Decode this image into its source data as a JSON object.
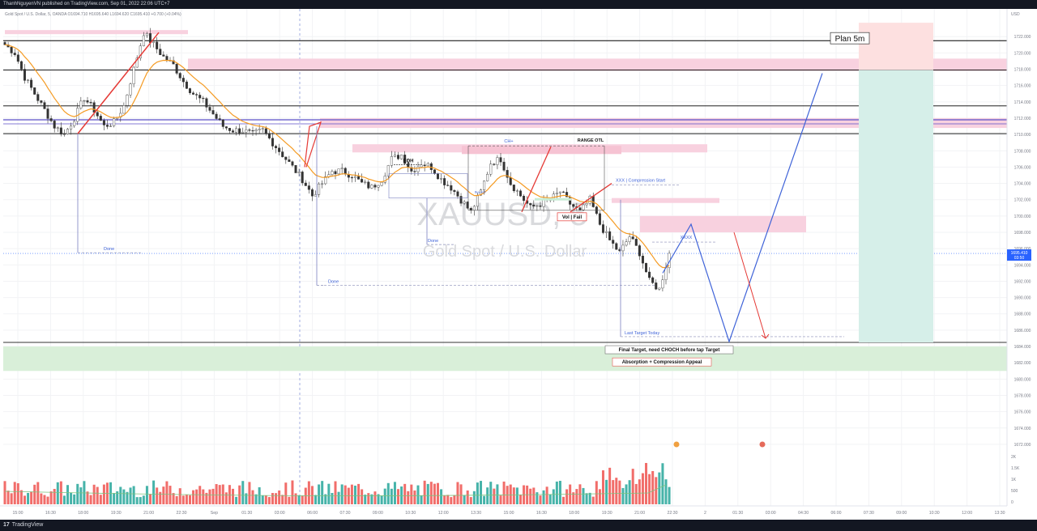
{
  "header": {
    "published_text": "ThanhNguyenVN published on TradingView.com, Sep 01, 2022 22:06 UTC+7"
  },
  "symbol_line": "Gold Spot / U.S. Dollar, 5, OANDA  O1694.710  H1695.640  L1694.620  C1695.410  +0.700 (+0.04%)",
  "footer": {
    "brand": "TradingView",
    "logo_glyph": "17"
  },
  "watermark": {
    "ticker": "XAUUSD, 5",
    "name": "Gold Spot / U.S. Dollar"
  },
  "price_axis": {
    "currency": "USD",
    "current_price": "1695.410",
    "countdown": "03:50",
    "volume_labels": [
      "2K",
      "1.5K",
      "1K",
      "500",
      "0"
    ]
  },
  "chart_data": {
    "type": "candlestick",
    "symbol": "XAUUSD",
    "timeframe": "5",
    "ylim": [
      1671,
      1725
    ],
    "y_ticks": [
      1672,
      1674,
      1676,
      1678,
      1680,
      1682,
      1684,
      1686,
      1688,
      1690,
      1692,
      1694,
      1696,
      1698,
      1700,
      1702,
      1704,
      1706,
      1708,
      1710,
      1712,
      1714,
      1716,
      1718,
      1720,
      1722
    ],
    "x_labels": [
      "15:00",
      "16:30",
      "18:00",
      "19:30",
      "21:00",
      "22:30",
      "Sep",
      "01:30",
      "03:00",
      "06:00",
      "07:30",
      "09:00",
      "10:30",
      "12:00",
      "13:30",
      "15:00",
      "16:30",
      "18:00",
      "19:30",
      "21:00",
      "22:30",
      "2",
      "01:30",
      "03:00",
      "04:30",
      "06:00",
      "07:30",
      "09:00",
      "10:30",
      "12:00",
      "13:30"
    ],
    "price_path": [
      [
        0,
        1721
      ],
      [
        3,
        1720
      ],
      [
        6,
        1717
      ],
      [
        9,
        1715
      ],
      [
        12,
        1713
      ],
      [
        15,
        1711
      ],
      [
        18,
        1710
      ],
      [
        21,
        1712
      ],
      [
        24,
        1714.5
      ],
      [
        27,
        1713
      ],
      [
        30,
        1711
      ],
      [
        33,
        1711.5
      ],
      [
        36,
        1713.5
      ],
      [
        39,
        1718
      ],
      [
        42,
        1722.5
      ],
      [
        45,
        1721
      ],
      [
        48,
        1719.5
      ],
      [
        51,
        1718.5
      ],
      [
        54,
        1716.5
      ],
      [
        57,
        1715
      ],
      [
        60,
        1714
      ],
      [
        63,
        1712.5
      ],
      [
        66,
        1711
      ],
      [
        69,
        1710.5
      ],
      [
        72,
        1710.5
      ],
      [
        75,
        1710
      ],
      [
        78,
        1710.5
      ],
      [
        81,
        1709
      ],
      [
        84,
        1707.5
      ],
      [
        87,
        1706
      ],
      [
        90,
        1704.5
      ],
      [
        93,
        1702.5
      ],
      [
        96,
        1704
      ],
      [
        99,
        1705.5
      ],
      [
        102,
        1705.5
      ],
      [
        105,
        1705
      ],
      [
        108,
        1704
      ],
      [
        111,
        1703.5
      ],
      [
        114,
        1704.5
      ],
      [
        117,
        1707
      ],
      [
        120,
        1707.5
      ],
      [
        123,
        1705.5
      ],
      [
        126,
        1706.5
      ],
      [
        129,
        1706
      ],
      [
        132,
        1704.5
      ],
      [
        135,
        1703.5
      ],
      [
        138,
        1702
      ],
      [
        141,
        1700.5
      ],
      [
        144,
        1703
      ],
      [
        147,
        1706.5
      ],
      [
        150,
        1707
      ],
      [
        153,
        1704
      ],
      [
        156,
        1702.5
      ],
      [
        159,
        1701
      ],
      [
        162,
        1701.5
      ],
      [
        165,
        1702
      ],
      [
        168,
        1703
      ],
      [
        171,
        1701.5
      ],
      [
        174,
        1700.5
      ],
      [
        177,
        1702
      ],
      [
        180,
        1699
      ],
      [
        183,
        1697
      ],
      [
        186,
        1695.5
      ],
      [
        189,
        1697.5
      ],
      [
        192,
        1695.5
      ],
      [
        195,
        1692
      ],
      [
        198,
        1691
      ],
      [
        201,
        1695.4
      ]
    ],
    "levels": [
      1721.5,
      1717.9,
      1713.5,
      1711.8,
      1710.1,
      1684.5
    ],
    "zones": {
      "demand": [
        1681,
        1684
      ],
      "supply": [
        {
          "range": [
            1717.8,
            1719.3
          ]
        },
        {
          "range": [
            1710.8,
            1712.0
          ]
        },
        {
          "range": [
            1707.8,
            1708.8
          ]
        },
        {
          "range": [
            1701.6,
            1702.2
          ]
        },
        {
          "range": [
            1698,
            1700
          ]
        },
        {
          "range": [
            1722.3,
            1722.8
          ]
        }
      ]
    },
    "annotations": {
      "eqh": "EQH",
      "choch": "CH+",
      "range_label": "RANGE OTL",
      "compression_start": "XXX  |  Compression Start",
      "vol_fail": "Vol  |  Fail",
      "xxxx": "XXXX",
      "done": [
        "Done",
        "Done",
        "Done"
      ],
      "last_target": "Last Target Today",
      "final_target": "Final Target, need CHOCH before tap Target",
      "absorption": "Absorption + Compression Appeal",
      "plan": "Plan 5m",
      "buy_wall": "Buy wall"
    },
    "projection": {
      "blue": [
        [
          195,
          1693
        ],
        [
          201,
          1699
        ],
        [
          210,
          1684.6
        ],
        [
          228,
          1717.5
        ]
      ],
      "red": [
        [
          218,
          1698
        ],
        [
          226,
          1685
        ]
      ]
    },
    "volume_max": 2000
  }
}
